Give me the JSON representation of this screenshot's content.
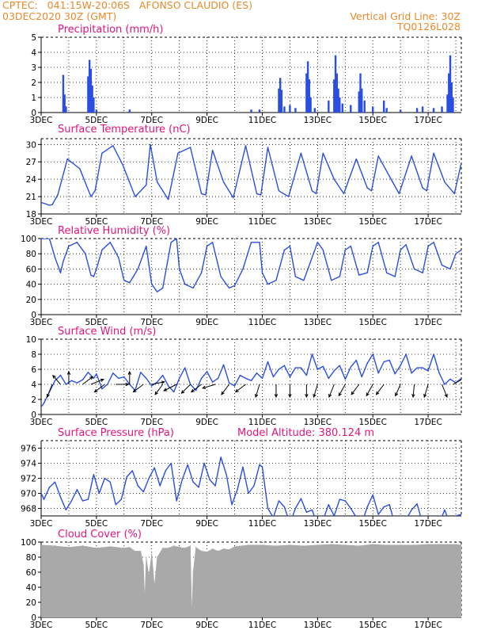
{
  "header": {
    "left_line1": "CPTEC:   041:15W-20:06S   AFONSO CLAUDIO (ES)",
    "left_line2": "03DEC2020 30Z (GMT)",
    "right_line1": "Vertical Grid Line: 30Z",
    "right_line2": "TQ0126L028"
  },
  "x_tick_labels": [
    "3DEC",
    "5DEC",
    "7DEC",
    "9DEC",
    "11DEC",
    "13DEC",
    "15DEC",
    "17DEC"
  ],
  "colors": {
    "header": "#e88a2a",
    "title": "#e0157f",
    "series": "#2a4fe0",
    "cloud": "#a9a9a9",
    "arrow": "#000000"
  },
  "chart_data": [
    {
      "type": "bar",
      "title": "Precipitation (mm/h)",
      "ylim": [
        0,
        5
      ],
      "yticks": [
        "0",
        "1",
        "2",
        "3",
        "4",
        "5"
      ],
      "x_range_days": [
        3,
        18.2
      ],
      "bars": [
        [
          3.8,
          2.5
        ],
        [
          3.85,
          1.2
        ],
        [
          3.9,
          0.4
        ],
        [
          4.7,
          2.4
        ],
        [
          4.75,
          3.5
        ],
        [
          4.8,
          2.9
        ],
        [
          4.85,
          1.8
        ],
        [
          4.9,
          1.0
        ],
        [
          5.0,
          0.2
        ],
        [
          6.2,
          0.2
        ],
        [
          10.6,
          0.2
        ],
        [
          10.9,
          0.2
        ],
        [
          11.6,
          1.6
        ],
        [
          11.65,
          2.3
        ],
        [
          11.7,
          1.5
        ],
        [
          11.8,
          0.4
        ],
        [
          12.0,
          0.5
        ],
        [
          12.2,
          0.3
        ],
        [
          12.6,
          2.6
        ],
        [
          12.65,
          3.4
        ],
        [
          12.7,
          2.2
        ],
        [
          12.75,
          1.0
        ],
        [
          12.9,
          0.3
        ],
        [
          13.4,
          0.8
        ],
        [
          13.6,
          2.2
        ],
        [
          13.65,
          3.8
        ],
        [
          13.7,
          2.6
        ],
        [
          13.75,
          1.6
        ],
        [
          13.8,
          1.0
        ],
        [
          13.9,
          0.6
        ],
        [
          14.2,
          0.5
        ],
        [
          14.5,
          1.4
        ],
        [
          14.55,
          2.6
        ],
        [
          14.6,
          1.6
        ],
        [
          14.7,
          0.8
        ],
        [
          15.0,
          0.4
        ],
        [
          15.4,
          0.8
        ],
        [
          15.5,
          0.3
        ],
        [
          16.0,
          0.2
        ],
        [
          16.6,
          0.3
        ],
        [
          16.8,
          0.4
        ],
        [
          17.2,
          0.3
        ],
        [
          17.5,
          0.4
        ],
        [
          17.7,
          1.2
        ],
        [
          17.75,
          2.6
        ],
        [
          17.8,
          3.8
        ],
        [
          17.85,
          2.0
        ],
        [
          17.9,
          1.0
        ]
      ]
    },
    {
      "type": "line",
      "title": "Surface Temperature (nC)",
      "ylim": [
        18,
        31
      ],
      "yticks": [
        "18",
        "21",
        "24",
        "27",
        "30"
      ],
      "x_range_days": [
        3,
        18.2
      ],
      "series": [
        {
          "x": [
            3.0,
            3.3,
            3.4,
            3.6,
            3.95,
            4.4,
            4.8,
            4.95,
            5.2,
            5.6,
            5.95,
            6.4,
            6.8,
            6.95,
            7.2,
            7.6,
            7.95,
            8.4,
            8.8,
            8.95,
            9.2,
            9.6,
            9.95,
            10.4,
            10.8,
            10.95,
            11.2,
            11.6,
            11.95,
            12.4,
            12.8,
            12.95,
            13.2,
            13.6,
            13.95,
            14.4,
            14.8,
            14.95,
            15.2,
            15.6,
            15.95,
            16.4,
            16.8,
            16.95,
            17.2,
            17.6,
            17.95,
            18.2
          ],
          "y": [
            20,
            19.5,
            19.6,
            21.3,
            27.5,
            25.8,
            21.0,
            22.0,
            28.5,
            29.8,
            26.5,
            21.0,
            23.0,
            30.0,
            23.5,
            20.5,
            28.5,
            29.5,
            21.5,
            21.3,
            29.0,
            23.5,
            20.8,
            29.8,
            21.5,
            21.3,
            29.5,
            22.0,
            21.0,
            28.5,
            22.0,
            21.5,
            28.5,
            24.0,
            21.5,
            27.5,
            22.5,
            22.0,
            28.0,
            24.5,
            21.5,
            28.0,
            22.5,
            22.0,
            28.5,
            23.5,
            21.5,
            26.8
          ]
        }
      ]
    },
    {
      "type": "line",
      "title": "Relative Humidity (%)",
      "ylim": [
        0,
        100
      ],
      "yticks": [
        "0",
        "20",
        "40",
        "60",
        "80",
        "100"
      ],
      "x_range_days": [
        3,
        18.2
      ],
      "series": [
        {
          "x": [
            3.0,
            3.1,
            3.3,
            3.5,
            3.7,
            3.8,
            4.0,
            4.3,
            4.6,
            4.8,
            4.9,
            5.0,
            5.2,
            5.5,
            5.8,
            6.0,
            6.2,
            6.5,
            6.8,
            7.0,
            7.2,
            7.4,
            7.7,
            7.9,
            8.0,
            8.2,
            8.5,
            8.8,
            9.0,
            9.2,
            9.5,
            9.8,
            10.0,
            10.3,
            10.6,
            10.9,
            11.0,
            11.2,
            11.5,
            11.8,
            12.0,
            12.2,
            12.5,
            12.8,
            13.0,
            13.2,
            13.5,
            13.8,
            14.0,
            14.2,
            14.5,
            14.8,
            15.0,
            15.2,
            15.5,
            15.8,
            16.0,
            16.2,
            16.5,
            16.8,
            17.0,
            17.2,
            17.5,
            17.8,
            18.0,
            18.2
          ],
          "y": [
            100,
            100,
            100,
            75,
            55,
            70,
            90,
            95,
            80,
            52,
            50,
            60,
            85,
            95,
            75,
            45,
            42,
            60,
            90,
            40,
            30,
            35,
            95,
            100,
            60,
            40,
            35,
            55,
            90,
            95,
            50,
            35,
            38,
            60,
            95,
            95,
            55,
            40,
            45,
            85,
            90,
            50,
            45,
            75,
            95,
            85,
            45,
            50,
            85,
            90,
            52,
            55,
            90,
            95,
            55,
            50,
            85,
            92,
            60,
            55,
            90,
            95,
            65,
            60,
            80,
            85
          ]
        }
      ]
    },
    {
      "type": "line",
      "title": "Surface Wind (m/s)",
      "ylim": [
        0,
        10
      ],
      "yticks": [
        "0",
        "2",
        "4",
        "6",
        "8",
        "10"
      ],
      "x_range_days": [
        3,
        18.2
      ],
      "series": [
        {
          "x": [
            3.0,
            3.1,
            3.3,
            3.5,
            3.7,
            3.9,
            4.1,
            4.3,
            4.5,
            4.7,
            4.9,
            5.0,
            5.2,
            5.4,
            5.6,
            5.8,
            6.0,
            6.2,
            6.4,
            6.6,
            6.8,
            7.0,
            7.2,
            7.4,
            7.6,
            7.8,
            8.0,
            8.2,
            8.4,
            8.6,
            8.8,
            9.0,
            9.2,
            9.4,
            9.6,
            9.8,
            10.0,
            10.2,
            10.4,
            10.6,
            10.8,
            11.0,
            11.2,
            11.4,
            11.6,
            11.8,
            12.0,
            12.2,
            12.4,
            12.6,
            12.8,
            13.0,
            13.2,
            13.4,
            13.6,
            13.8,
            14.0,
            14.2,
            14.4,
            14.6,
            14.8,
            15.0,
            15.2,
            15.4,
            15.6,
            15.8,
            16.0,
            16.2,
            16.4,
            16.6,
            16.8,
            17.0,
            17.2,
            17.4,
            17.6,
            17.8,
            18.0,
            18.2
          ],
          "y": [
            1.0,
            1.5,
            3.0,
            4.5,
            5.2,
            4.0,
            4.5,
            4.2,
            4.6,
            5.6,
            4.8,
            5.4,
            3.4,
            4.0,
            5.5,
            4.8,
            5.0,
            4.0,
            3.2,
            5.6,
            4.8,
            3.8,
            4.3,
            5.2,
            3.8,
            3.0,
            4.8,
            6.2,
            4.0,
            3.2,
            4.8,
            5.7,
            4.3,
            4.8,
            6.6,
            4.2,
            3.8,
            5.2,
            4.8,
            4.5,
            5.5,
            4.8,
            7.0,
            5.0,
            6.0,
            6.5,
            5.0,
            6.2,
            6.2,
            5.2,
            8.0,
            6.0,
            6.4,
            4.8,
            5.8,
            6.5,
            4.7,
            6.3,
            7.2,
            5.0,
            6.8,
            8.0,
            5.5,
            7.0,
            7.2,
            5.4,
            6.5,
            8.0,
            5.5,
            6.2,
            6.2,
            5.8,
            8.0,
            5.5,
            4.0,
            4.7,
            4.2,
            4.8
          ]
        }
      ],
      "wind_barbs": [
        [
          3.4,
          -0.4,
          -1.0
        ],
        [
          3.7,
          -0.6,
          0.7
        ],
        [
          4.0,
          0.0,
          1.0
        ],
        [
          4.5,
          0.8,
          0.6
        ],
        [
          4.8,
          1.0,
          0.4
        ],
        [
          5.3,
          -0.8,
          -0.6
        ],
        [
          5.7,
          1.0,
          0.0
        ],
        [
          6.2,
          0.0,
          1.0
        ],
        [
          6.7,
          -0.8,
          -0.6
        ],
        [
          7.0,
          1.0,
          0.2
        ],
        [
          7.4,
          -0.6,
          -0.8
        ],
        [
          7.9,
          -1.0,
          -0.5
        ],
        [
          8.4,
          -0.7,
          -0.7
        ],
        [
          8.8,
          -0.8,
          -0.6
        ],
        [
          9.3,
          -1.0,
          -0.3
        ],
        [
          9.8,
          -0.6,
          -0.8
        ],
        [
          10.4,
          -0.8,
          -0.6
        ],
        [
          10.9,
          -0.3,
          -1.0
        ],
        [
          11.5,
          0.0,
          -1.0
        ],
        [
          12.0,
          0.0,
          -1.0
        ],
        [
          12.6,
          0.0,
          -1.0
        ],
        [
          13.0,
          -0.3,
          -1.0
        ],
        [
          13.6,
          -0.4,
          -1.0
        ],
        [
          14.0,
          -0.5,
          -0.9
        ],
        [
          14.5,
          -0.6,
          -0.8
        ],
        [
          15.0,
          -0.5,
          -0.9
        ],
        [
          15.4,
          -0.6,
          -0.8
        ],
        [
          16.0,
          -0.4,
          -0.9
        ],
        [
          16.5,
          -0.1,
          -1.0
        ],
        [
          17.0,
          -0.3,
          -1.0
        ],
        [
          17.5,
          0.4,
          -1.0
        ],
        [
          17.9,
          0.9,
          0.5
        ]
      ]
    },
    {
      "type": "line",
      "title": "Surface Pressure (hPa)",
      "annotation": "Model Altitude: 380.124 m",
      "ylim": [
        967,
        977
      ],
      "yticks": [
        "968",
        "970",
        "972",
        "974",
        "976"
      ],
      "x_range_days": [
        3,
        18.2
      ],
      "series": [
        {
          "x": [
            3.0,
            3.1,
            3.3,
            3.5,
            3.7,
            3.9,
            4.1,
            4.3,
            4.5,
            4.7,
            4.9,
            5.1,
            5.3,
            5.5,
            5.7,
            5.9,
            6.1,
            6.3,
            6.5,
            6.7,
            6.9,
            7.1,
            7.3,
            7.5,
            7.7,
            7.9,
            8.1,
            8.3,
            8.5,
            8.7,
            8.9,
            9.1,
            9.3,
            9.5,
            9.7,
            9.9,
            10.1,
            10.3,
            10.5,
            10.7,
            10.9,
            11.0,
            11.2,
            11.4,
            11.6,
            11.8,
            12.0,
            12.2,
            12.4,
            12.6,
            12.8,
            13.0,
            13.2,
            13.4,
            13.6,
            13.8,
            14.0,
            14.2,
            14.4,
            14.6,
            14.8,
            15.0,
            15.2,
            15.4,
            15.6,
            15.8,
            16.0,
            16.2,
            16.4,
            16.6,
            16.8,
            17.0,
            17.2,
            17.4,
            17.6,
            17.8,
            18.0,
            18.2
          ],
          "y": [
            970,
            969.2,
            970.8,
            971.5,
            969.5,
            967.8,
            969.0,
            970.5,
            969.0,
            969.2,
            972.5,
            970.0,
            972.0,
            971.5,
            968.5,
            969.2,
            972.2,
            973.0,
            971.0,
            970.2,
            972.0,
            973.4,
            971.0,
            973.0,
            974.0,
            969.0,
            971.8,
            973.8,
            971.5,
            970.8,
            974.0,
            971.8,
            971.0,
            974.8,
            972.5,
            968.5,
            970.5,
            973.5,
            970.0,
            971.0,
            973.8,
            973.5,
            968.0,
            966.8,
            969.0,
            968.2,
            966.0,
            968.0,
            969.3,
            967.5,
            967.8,
            965.8,
            966.5,
            968.5,
            967.0,
            969.2,
            969.0,
            968.0,
            966.8,
            966.0,
            968.2,
            969.8,
            967.2,
            968.2,
            968.5,
            965.8,
            967.0,
            966.5,
            967.8,
            968.6,
            966.0,
            965.5,
            967.0,
            966.0,
            967.8,
            965.8,
            967.0,
            967.2
          ]
        }
      ]
    },
    {
      "type": "area",
      "title": "Cloud Cover (%)",
      "ylim": [
        0,
        100
      ],
      "yticks": [
        "0",
        "20",
        "40",
        "60",
        "80",
        "100"
      ],
      "x_range_days": [
        3,
        18.2
      ],
      "series": [
        {
          "x": [
            3.0,
            3.5,
            4.0,
            4.5,
            5.0,
            5.5,
            6.0,
            6.2,
            6.4,
            6.6,
            6.7,
            6.75,
            6.8,
            6.9,
            7.0,
            7.1,
            7.2,
            7.4,
            7.6,
            7.8,
            8.0,
            8.2,
            8.4,
            8.45,
            8.5,
            8.6,
            8.8,
            9.0,
            9.2,
            9.4,
            9.6,
            9.8,
            10.0,
            10.5,
            11.0,
            11.5,
            12.0,
            12.5,
            13.0,
            13.5,
            14.0,
            14.5,
            15.0,
            15.5,
            16.0,
            16.5,
            17.0,
            17.5,
            18.0,
            18.2
          ],
          "y": [
            96,
            95,
            93,
            95,
            92,
            94,
            92,
            93,
            88,
            88,
            70,
            25,
            80,
            55,
            85,
            42,
            80,
            92,
            92,
            95,
            93,
            92,
            95,
            2,
            60,
            93,
            88,
            87,
            91,
            88,
            91,
            90,
            94,
            96,
            96,
            95,
            96,
            95,
            96,
            97,
            96,
            95,
            97,
            96,
            96,
            96,
            97,
            97,
            97,
            96
          ]
        }
      ]
    }
  ]
}
